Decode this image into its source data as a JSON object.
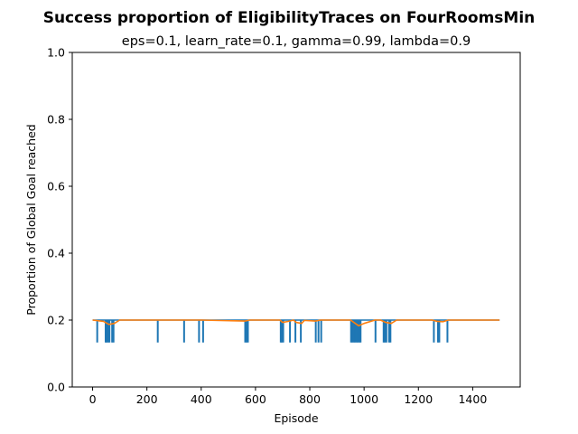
{
  "chart_data": {
    "type": "line",
    "title": "Success proportion of EligibilityTraces on FourRoomsMin",
    "subtitle": "eps=0.1, learn_rate=0.1, gamma=0.99, lambda=0.9",
    "xlabel": "Episode",
    "ylabel": "Proportion of Global Goal reached",
    "xlim": [
      -75,
      1575
    ],
    "ylim": [
      0,
      1.0
    ],
    "xticks": [
      0,
      200,
      400,
      600,
      800,
      1000,
      1200,
      1400
    ],
    "yticks": [
      0.0,
      0.2,
      0.4,
      0.6,
      0.8,
      1.0
    ],
    "ytick_labels": [
      "0.0",
      "0.2",
      "0.4",
      "0.6",
      "0.8",
      "1.0"
    ],
    "grid": false,
    "series": [
      {
        "color": "#1f77b4",
        "baseline": 0.2,
        "x_range": [
          0,
          1499
        ],
        "drop_value": 0.133,
        "drop_episodes": [
          17,
          48,
          52,
          57,
          62,
          72,
          77,
          240,
          337,
          392,
          407,
          562,
          567,
          572,
          693,
          697,
          702,
          727,
          747,
          767,
          822,
          832,
          842,
          952,
          957,
          962,
          967,
          972,
          977,
          982,
          987,
          1042,
          1072,
          1077,
          1082,
          1092,
          1097,
          1257,
          1272,
          1277,
          1307
        ]
      },
      {
        "color": "#ff7f0e",
        "x": [
          0,
          40,
          60,
          80,
          100,
          240,
          400,
          560,
          580,
          690,
          700,
          720,
          740,
          750,
          770,
          780,
          820,
          840,
          950,
          980,
          1000,
          1040,
          1060,
          1080,
          1100,
          1120,
          1250,
          1270,
          1290,
          1310,
          1499
        ],
        "y": [
          0.2,
          0.196,
          0.187,
          0.19,
          0.2,
          0.2,
          0.2,
          0.197,
          0.2,
          0.2,
          0.193,
          0.196,
          0.2,
          0.193,
          0.19,
          0.199,
          0.197,
          0.2,
          0.2,
          0.183,
          0.19,
          0.2,
          0.2,
          0.193,
          0.19,
          0.2,
          0.2,
          0.196,
          0.195,
          0.2,
          0.2
        ]
      }
    ]
  }
}
